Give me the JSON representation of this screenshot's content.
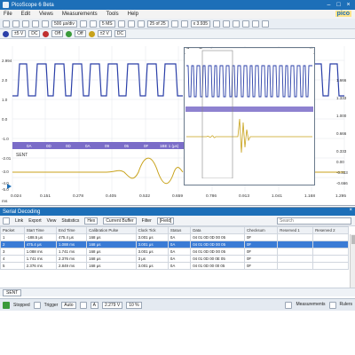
{
  "window": {
    "title": "PicoScope 6 Beta"
  },
  "menu": [
    "File",
    "Edit",
    "Views",
    "Measurements",
    "Tools",
    "Help"
  ],
  "brand": "pico",
  "toolbar1": {
    "timebase": "500 µs/div",
    "samples": "5 MS",
    "capture": "25 of 25",
    "zoom": "x 3.935"
  },
  "toolbar2": {
    "range_a": "±5 V",
    "coupling_a": "DC",
    "off": "Off",
    "range_d": "±2 V",
    "coupling_d": "DC"
  },
  "scope": {
    "left_axis": [
      "2.994",
      "2.0",
      "1.0",
      "0.0",
      "-1.0",
      "-2.01",
      "-3.0",
      "-4.0",
      "-5.0"
    ],
    "right_axis": [
      "1.666",
      "1.333",
      "1.000",
      "0.666",
      "0.333",
      "0.00",
      "-0.333",
      "-0.666"
    ],
    "x_axis": [
      "0.024",
      "0.151",
      "0.278",
      "0.405",
      "0.532",
      "0.659",
      "0.786",
      "0.913",
      "1.041",
      "1.168",
      "1.295"
    ],
    "x_unit": "ms",
    "decode_label": "SENT",
    "decode_cells": [
      "0A",
      "0D",
      "0D",
      "0A",
      "09",
      "05",
      "0F",
      "1BE 1 (μs)"
    ],
    "zoom_title": "Zoom Overview"
  },
  "decode": {
    "panel_title": "Serial Decoding",
    "toolbar": [
      "Link",
      "Export",
      "View",
      "Statistics",
      "Hex",
      "Current Buffer",
      "Filter",
      "[Field]"
    ],
    "search_placeholder": "Search",
    "columns": [
      "Packet",
      "Start Time",
      "End Time",
      "Calibration Pulse",
      "Clock Tick",
      "Status",
      "Data",
      "Checksum",
      "Reserved 1",
      "Reserved 2"
    ],
    "rows": [
      [
        "1",
        "-188.5 μs",
        "475.4 μs",
        "168 μs",
        "3.001 μs",
        "0A",
        "04 01 0D 0D 00 05",
        "0F",
        "",
        ""
      ],
      [
        "2",
        "475.4 μs",
        "1.088 ms",
        "168 μs",
        "3.001 μs",
        "0A",
        "04 01 0D 0D 00 05",
        "0F",
        "",
        ""
      ],
      [
        "3",
        "1.088 ms",
        "1.741 ms",
        "168 μs",
        "3.001 μs",
        "0A",
        "04 01 0D 0D 00 05",
        "0F",
        "",
        ""
      ],
      [
        "4",
        "1.741 ms",
        "2.376 ms",
        "168 μs",
        "3 μs",
        "0A",
        "04 01 0D 00 0E 05",
        "0F",
        "",
        ""
      ],
      [
        "5",
        "2.376 ms",
        "2.849 ms",
        "168 μs",
        "3.001 μs",
        "0A",
        "04 01 0D 00 00 05",
        "0F",
        "",
        ""
      ]
    ]
  },
  "tab": "SENT",
  "status": {
    "state": "Stopped",
    "trigger_label": "Trigger",
    "trigger_mode": "Auto",
    "channel": "A",
    "level": "2.279 V",
    "pre_trigger": "10 %",
    "measurements": "Measurements",
    "rulers": "Rulers"
  },
  "colors": {
    "accent": "#1d6fb8",
    "channel_a": "#2a3fa8",
    "channel_b": "#c8a21a",
    "decode_bar": "#7a6cc8"
  }
}
